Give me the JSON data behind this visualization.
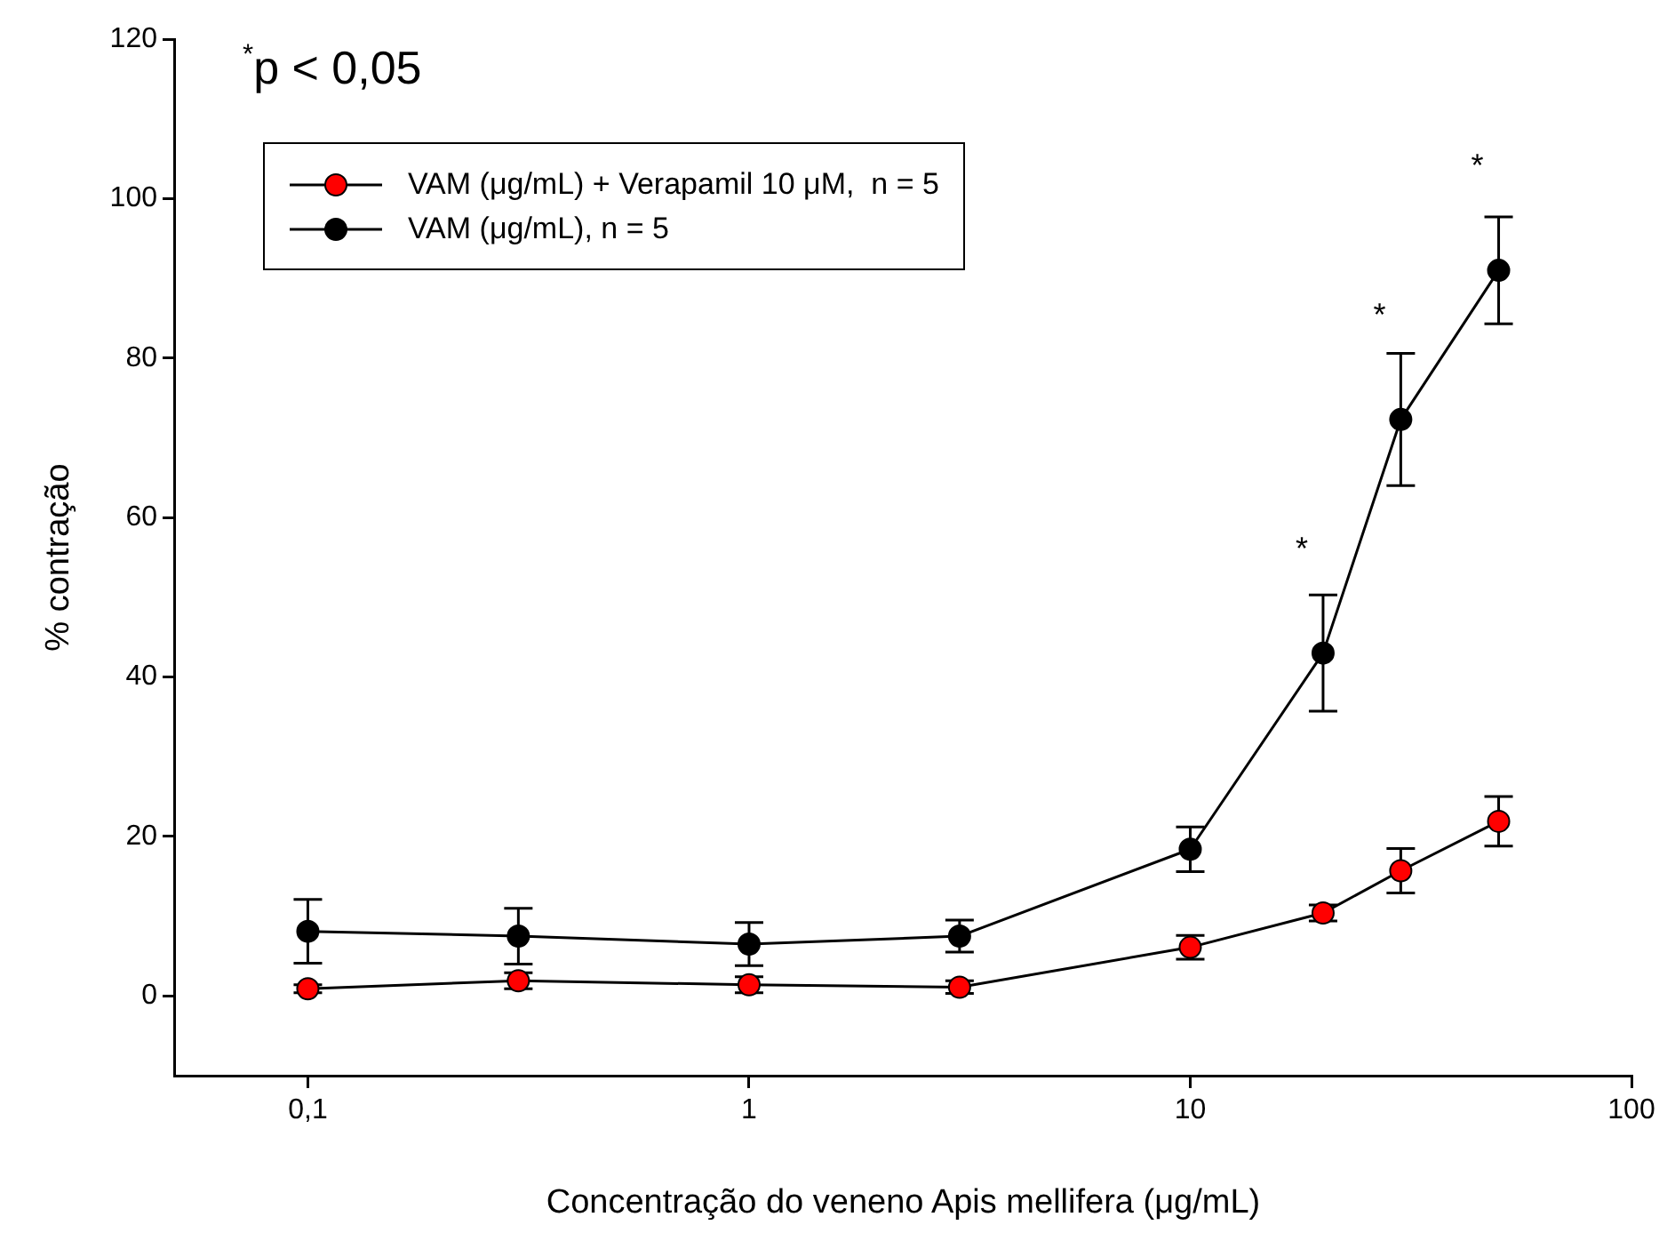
{
  "chart_data": {
    "type": "line",
    "xlabel": "Concentração do veneno Apis mellifera (μg/mL)",
    "ylabel": "% contração",
    "x": [
      0.1,
      0.3,
      1,
      3,
      10,
      20,
      30,
      50
    ],
    "series": [
      {
        "name": "VAM (μg/mL) + Verapamil 10 μM,  n = 5",
        "color": "#ff0000",
        "values": [
          0.9,
          1.9,
          1.4,
          1.1,
          6.1,
          10.4,
          15.7,
          21.9
        ],
        "errors": [
          0.5,
          1,
          1,
          0.8,
          1.5,
          1,
          2.8,
          3.1
        ]
      },
      {
        "name": "VAM (μg/mL), n = 5",
        "color": "#000000",
        "values": [
          8.1,
          7.5,
          6.5,
          7.5,
          18.4,
          43,
          72.3,
          91
        ],
        "errors": [
          4,
          3.5,
          2.7,
          2,
          2.8,
          7.3,
          8.3,
          6.7
        ]
      }
    ],
    "log": "x",
    "xlim": [
      0.05,
      100
    ],
    "xticks": [
      {
        "value": 0.1,
        "label": "0,1"
      },
      1,
      10,
      100
    ],
    "ylim": [
      -10,
      120
    ],
    "yticks": [
      0,
      20,
      40,
      60,
      80,
      100,
      120
    ],
    "grid": false,
    "legend": "top left",
    "marker": "circle",
    "line_style": "solid",
    "annotations": [
      "$^{*}$p < 0,05",
      {
        "text": "*",
        "x": 20,
        "y": 43
      },
      {
        "text": "*",
        "x": 30,
        "y": 72.3
      },
      {
        "text": "*",
        "x": 50,
        "y": 91
      }
    ]
  }
}
